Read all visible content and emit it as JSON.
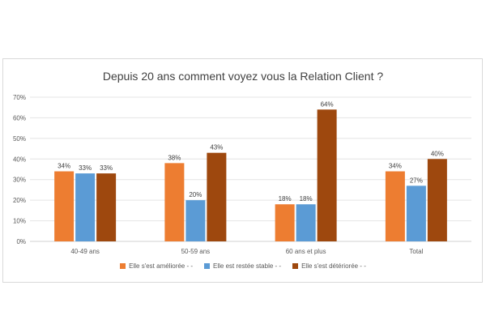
{
  "chart_data": {
    "type": "bar",
    "title": "Depuis 20 ans comment voyez vous la Relation Client ?",
    "categories": [
      "40-49 ans",
      "50-59 ans",
      "60 ans et plus",
      "Total"
    ],
    "series": [
      {
        "name": "Elle s'est améliorée - -",
        "color": "#ed7d31",
        "values": [
          34,
          38,
          18,
          34
        ]
      },
      {
        "name": "Elle est restée stable - -",
        "color": "#5b9bd5",
        "values": [
          33,
          20,
          18,
          27
        ]
      },
      {
        "name": "Elle s'est détériorée - -",
        "color": "#9e480e",
        "values": [
          33,
          43,
          64,
          40
        ]
      }
    ],
    "value_format": "percent",
    "ylim": [
      0,
      70
    ],
    "yticks": [
      "0%",
      "10%",
      "20%",
      "30%",
      "40%",
      "50%",
      "60%",
      "70%"
    ],
    "grid": true,
    "legend_position": "bottom"
  }
}
